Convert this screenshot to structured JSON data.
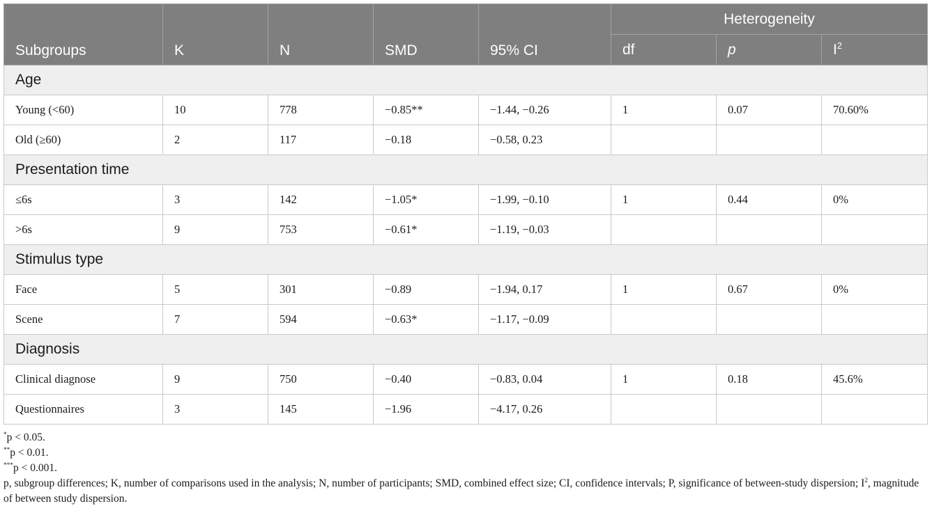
{
  "header": {
    "heterogeneity": "Heterogeneity",
    "subgroups": "Subgroups",
    "k": "K",
    "n": "N",
    "smd": "SMD",
    "ci": "95% CI",
    "df": "df",
    "p": "p",
    "i2_base": "I",
    "i2_sup": "2"
  },
  "groups": [
    {
      "label": "Age",
      "rows": [
        {
          "subgroup": "Young (<60)",
          "k": "10",
          "n": "778",
          "smd": "−0.85**",
          "ci": "−1.44, −0.26",
          "df": "1",
          "p": "0.07",
          "i2": "70.60%"
        },
        {
          "subgroup": "Old (≥60)",
          "k": "2",
          "n": "117",
          "smd": "−0.18",
          "ci": "−0.58, 0.23",
          "df": "",
          "p": "",
          "i2": ""
        }
      ]
    },
    {
      "label": "Presentation time",
      "rows": [
        {
          "subgroup": "≤6s",
          "k": "3",
          "n": "142",
          "smd": "−1.05*",
          "ci": "−1.99, −0.10",
          "df": "1",
          "p": "0.44",
          "i2": "0%"
        },
        {
          "subgroup": ">6s",
          "k": "9",
          "n": "753",
          "smd": "−0.61*",
          "ci": "−1.19, −0.03",
          "df": "",
          "p": "",
          "i2": ""
        }
      ]
    },
    {
      "label": "Stimulus type",
      "rows": [
        {
          "subgroup": "Face",
          "k": "5",
          "n": "301",
          "smd": "−0.89",
          "ci": "−1.94, 0.17",
          "df": "1",
          "p": "0.67",
          "i2": "0%"
        },
        {
          "subgroup": "Scene",
          "k": "7",
          "n": "594",
          "smd": "−0.63*",
          "ci": "−1.17, −0.09",
          "df": "",
          "p": "",
          "i2": ""
        }
      ]
    },
    {
      "label": "Diagnosis",
      "rows": [
        {
          "subgroup": "Clinical diagnose",
          "k": "9",
          "n": "750",
          "smd": "−0.40",
          "ci": "−0.83, 0.04",
          "df": "1",
          "p": "0.18",
          "i2": "45.6%"
        },
        {
          "subgroup": "Questionnaires",
          "k": "3",
          "n": "145",
          "smd": "−1.96",
          "ci": "−4.17, 0.26",
          "df": "",
          "p": "",
          "i2": ""
        }
      ]
    }
  ],
  "notes": {
    "n1_sup": "*",
    "n1_text": "p < 0.05.",
    "n2_sup": "**",
    "n2_text": "p < 0.01.",
    "n3_sup": "***",
    "n3_text": "p < 0.001.",
    "n4_before": "p, subgroup differences; K, number of comparisons used in the analysis; N, number of participants; SMD, combined effect size; CI, confidence intervals; P, significance of between-study dispersion; I",
    "n4_sup": "2",
    "n4_after": ", magnitude of between study dispersion."
  }
}
